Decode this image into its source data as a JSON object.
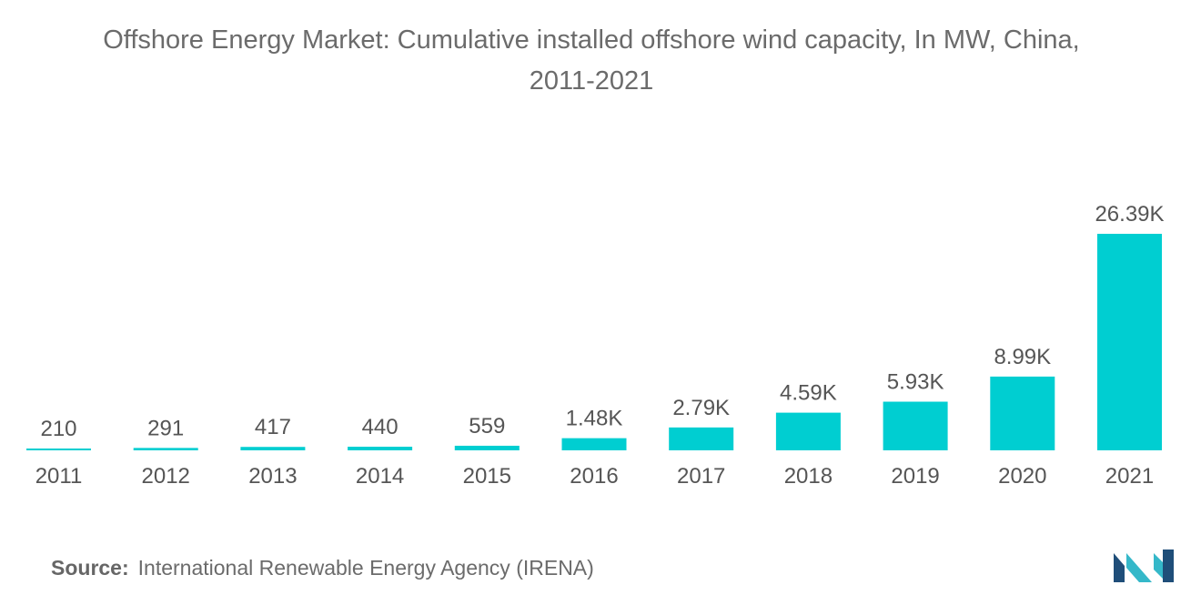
{
  "title_line1": "Offshore Energy Market: Cumulative installed offshore wind capacity, In MW, China,",
  "title_line2": "2011-2021",
  "source_label": "Source:",
  "source_text": "International Renewable Energy Agency (IRENA)",
  "colors": {
    "bar": "#00CED1",
    "text": "#555555",
    "logo_dark": "#1f4e79",
    "logo_light": "#35b8c9"
  },
  "chart_data": {
    "type": "bar",
    "title": "Offshore Energy Market: Cumulative installed offshore wind capacity, In MW, China, 2011-2021",
    "categories": [
      "2011",
      "2012",
      "2013",
      "2014",
      "2015",
      "2016",
      "2017",
      "2018",
      "2019",
      "2020",
      "2021"
    ],
    "values": [
      210,
      291,
      417,
      440,
      559,
      1480,
      2790,
      4590,
      5930,
      8990,
      26390
    ],
    "value_labels": [
      "210",
      "291",
      "417",
      "440",
      "559",
      "1.48K",
      "2.79K",
      "4.59K",
      "5.93K",
      "8.99K",
      "26.39K"
    ],
    "xlabel": "",
    "ylabel": "",
    "ylim": [
      0,
      26390
    ],
    "grid": false,
    "legend": "none"
  }
}
